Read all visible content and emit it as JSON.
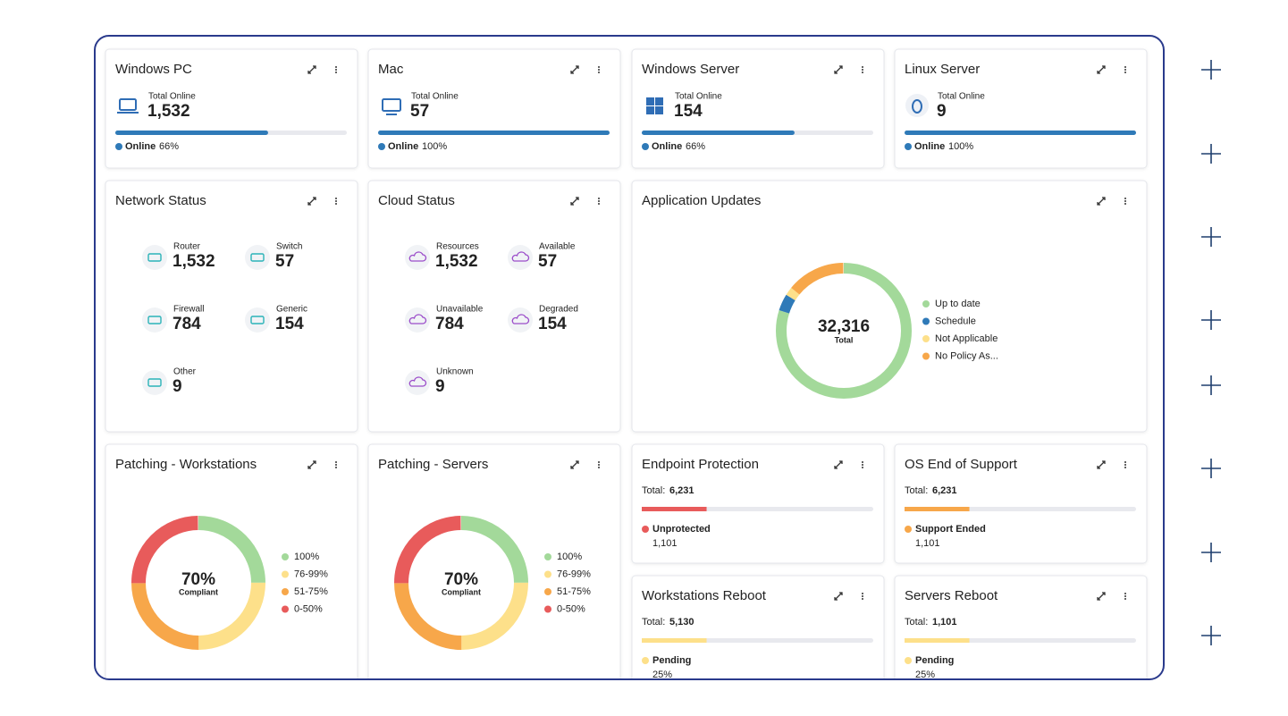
{
  "devices": [
    {
      "title": "Windows PC",
      "label": "Total Online",
      "value": "1,532",
      "status": "Online",
      "percent": 66,
      "percent_label": "66%"
    },
    {
      "title": "Mac",
      "label": "Total Online",
      "value": "57",
      "status": "Online",
      "percent": 100,
      "percent_label": "100%"
    },
    {
      "title": "Windows Server",
      "label": "Total Online",
      "value": "154",
      "status": "Online",
      "percent": 66,
      "percent_label": "66%"
    },
    {
      "title": "Linux Server",
      "label": "Total Online",
      "value": "9",
      "status": "Online",
      "percent": 100,
      "percent_label": "100%"
    }
  ],
  "network_status": {
    "title": "Network Status",
    "items": [
      {
        "label": "Router",
        "value": "1,532"
      },
      {
        "label": "Switch",
        "value": "57"
      },
      {
        "label": "Firewall",
        "value": "784"
      },
      {
        "label": "Generic",
        "value": "154"
      },
      {
        "label": "Other",
        "value": "9"
      }
    ]
  },
  "cloud_status": {
    "title": "Cloud Status",
    "items": [
      {
        "label": "Resources",
        "value": "1,532"
      },
      {
        "label": "Available",
        "value": "57"
      },
      {
        "label": "Unavailable",
        "value": "784"
      },
      {
        "label": "Degraded",
        "value": "154"
      },
      {
        "label": "Unknown",
        "value": "9"
      }
    ]
  },
  "application_updates": {
    "title": "Application Updates",
    "total": "32,316",
    "total_label": "Total",
    "segments": [
      {
        "name": "Up to date",
        "color": "#a3d99a",
        "value": 80
      },
      {
        "name": "Schedule",
        "color": "#2f7ab8",
        "value": 4
      },
      {
        "name": "Not Applicable",
        "color": "#fde08a",
        "value": 2
      },
      {
        "name": "No Policy As...",
        "color": "#f7a74a",
        "value": 14
      }
    ]
  },
  "patching": [
    {
      "title": "Patching - Workstations",
      "center": "70%",
      "center_label": "Compliant",
      "segments": [
        {
          "name": "100%",
          "color": "#a3d99a",
          "value": 25
        },
        {
          "name": "76-99%",
          "color": "#fde08a",
          "value": 25
        },
        {
          "name": "51-75%",
          "color": "#f7a74a",
          "value": 25
        },
        {
          "name": "0-50%",
          "color": "#e85b5b",
          "value": 25
        }
      ]
    },
    {
      "title": "Patching - Servers",
      "center": "70%",
      "center_label": "Compliant",
      "segments": [
        {
          "name": "100%",
          "color": "#a3d99a",
          "value": 25
        },
        {
          "name": "76-99%",
          "color": "#fde08a",
          "value": 25
        },
        {
          "name": "51-75%",
          "color": "#f7a74a",
          "value": 25
        },
        {
          "name": "0-50%",
          "color": "#e85b5b",
          "value": 25
        }
      ]
    }
  ],
  "summaries": [
    {
      "title": "Endpoint Protection",
      "total_label": "Total:",
      "total": "6,231",
      "bar": 28,
      "color": "#e85b5b",
      "status": "Unprotected",
      "detail": "1,101"
    },
    {
      "title": "OS End of Support",
      "total_label": "Total:",
      "total": "6,231",
      "bar": 28,
      "color": "#f7a74a",
      "status": "Support Ended",
      "detail": "1,101"
    },
    {
      "title": "Workstations Reboot",
      "total_label": "Total:",
      "total": "5,130",
      "bar": 28,
      "color": "#fde08a",
      "status": "Pending",
      "detail": "25%"
    },
    {
      "title": "Servers Reboot",
      "total_label": "Total:",
      "total": "1,101",
      "bar": 28,
      "color": "#fde08a",
      "status": "Pending",
      "detail": "25%"
    }
  ]
}
